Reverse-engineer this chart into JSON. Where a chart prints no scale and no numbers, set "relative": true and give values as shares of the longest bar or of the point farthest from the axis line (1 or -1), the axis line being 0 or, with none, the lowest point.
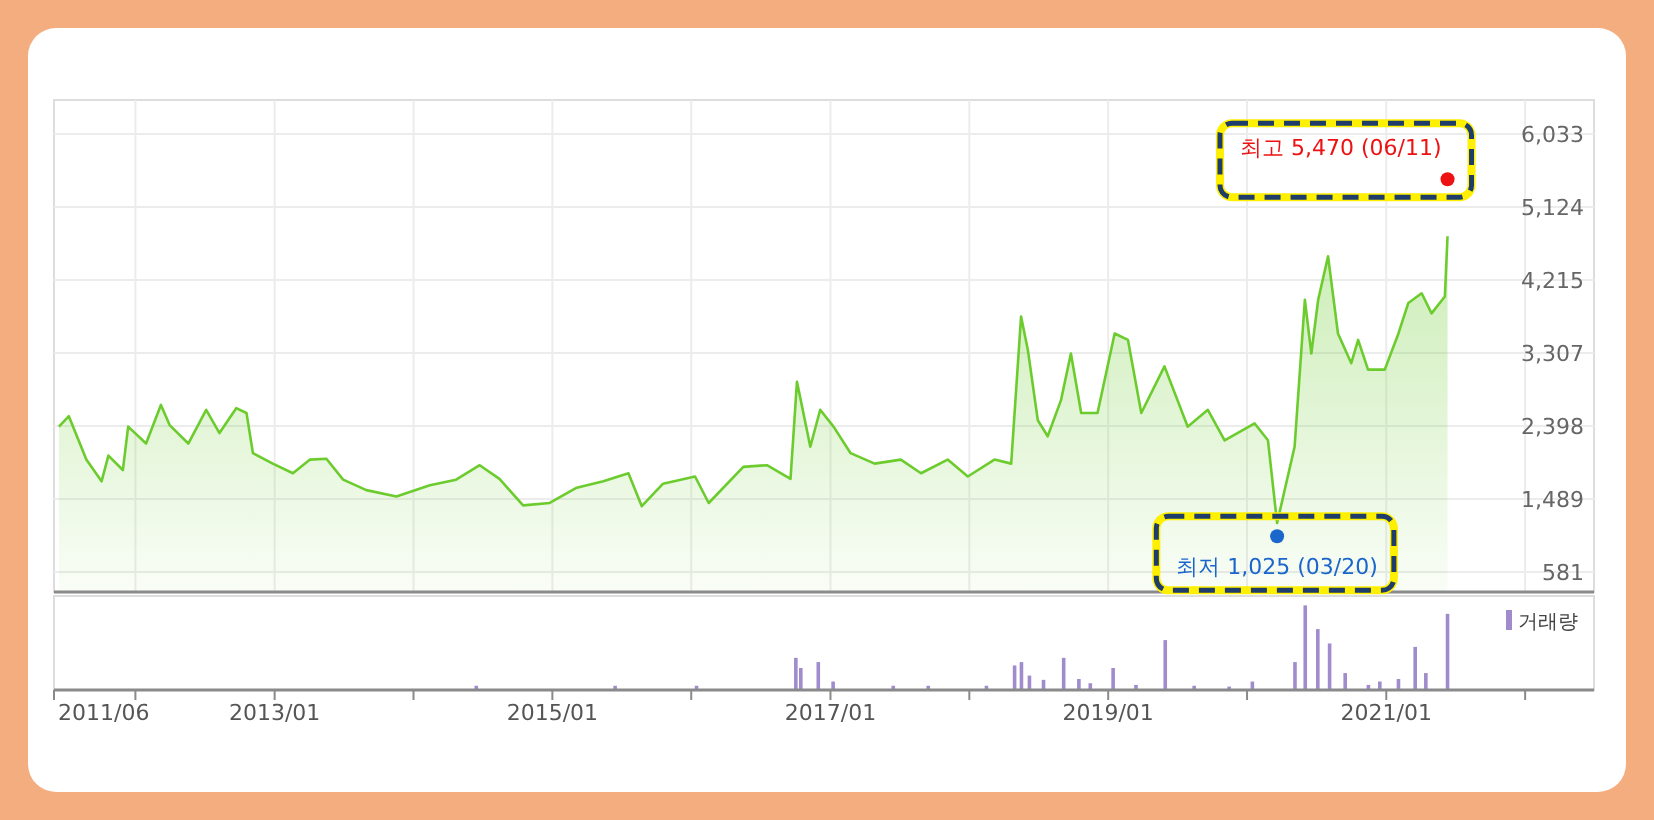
{
  "chart_data": [
    {
      "type": "area",
      "xlim": [
        "2011-06",
        "2022-07"
      ],
      "ylim": [
        332,
        6456
      ],
      "xticks": [
        {
          "value": "2012-01",
          "label": null
        },
        {
          "value": "2013-01",
          "label": null
        },
        {
          "value": "2014-01",
          "label": null
        },
        {
          "value": "2015-01",
          "label": null
        },
        {
          "value": "2016-01",
          "label": null
        },
        {
          "value": "2017-01",
          "label": null
        },
        {
          "value": "2018-01",
          "label": null
        },
        {
          "value": "2019-01",
          "label": null
        },
        {
          "value": "2020-01",
          "label": null
        },
        {
          "value": "2021-01",
          "label": null
        },
        {
          "value": "2022-01",
          "label": null
        }
      ],
      "yticks": [
        581,
        {
          "value": 1489,
          "label": "1,489"
        },
        {
          "value": 2398,
          "label": "2,398"
        },
        {
          "value": 3307,
          "label": "3,307"
        },
        {
          "value": 4215,
          "label": "4,215"
        },
        {
          "value": 5124,
          "label": "5,124"
        },
        {
          "value": 6033,
          "label": "6,033"
        }
      ],
      "grid": true,
      "tick_labels": "y",
      "series": [
        {
          "color": "#6ccc2e",
          "x": [
            "2011-06-14",
            "2011-07-10",
            "2011-08-25",
            "2011-10-04",
            "2011-10-22",
            "2011-11-29",
            "2011-12-13",
            "2012-01-29",
            "2012-03-08",
            "2012-03-31",
            "2012-05-19",
            "2012-07-05",
            "2012-08-09",
            "2012-09-22",
            "2012-10-19",
            "2012-11-05",
            "2012-12-27",
            "2013-02-18",
            "2013-04-04",
            "2013-05-17",
            "2013-06-30",
            "2013-08-30",
            "2013-11-17",
            "2014-02-13",
            "2014-04-23",
            "2014-06-24",
            "2014-08-15",
            "2014-10-16",
            "2014-12-25",
            "2015-03-06",
            "2015-05-15",
            "2015-07-20",
            "2015-08-24",
            "2015-10-19",
            "2016-01-11",
            "2016-02-16",
            "2016-05-17",
            "2016-07-18",
            "2016-09-18",
            "2016-10-05",
            "2016-11-09",
            "2016-12-05",
            "2017-01-09",
            "2017-02-23",
            "2017-04-27",
            "2017-07-05",
            "2017-08-27",
            "2017-11-05",
            "2017-12-28",
            "2018-03-08",
            "2018-04-21",
            "2018-05-17",
            "2018-06-04",
            "2018-06-30",
            "2018-07-26",
            "2018-08-30",
            "2018-09-25",
            "2018-10-22",
            "2018-12-04",
            "2019-01-18",
            "2019-02-22",
            "2019-03-29",
            "2019-05-29",
            "2019-07-29",
            "2019-09-20",
            "2019-11-03",
            "2020-01-21",
            "2020-02-25",
            "2020-03-20",
            "2020-05-05",
            "2020-06-01",
            "2020-06-18",
            "2020-07-06",
            "2020-08-01",
            "2020-08-27",
            "2020-10-01",
            "2020-10-19",
            "2020-11-14",
            "2020-12-28",
            "2021-02-02",
            "2021-02-28",
            "2021-04-04",
            "2021-04-30",
            "2021-06-04",
            "2021-06-11"
          ],
          "values": [
            2390,
            2520,
            1980,
            1710,
            2030,
            1850,
            2390,
            2180,
            2660,
            2410,
            2180,
            2600,
            2310,
            2620,
            2560,
            2060,
            1930,
            1810,
            1980,
            1990,
            1730,
            1600,
            1520,
            1660,
            1730,
            1910,
            1740,
            1410,
            1440,
            1630,
            1710,
            1810,
            1400,
            1680,
            1770,
            1440,
            1890,
            1910,
            1740,
            2950,
            2140,
            2600,
            2390,
            2060,
            1930,
            1980,
            1810,
            1980,
            1770,
            1980,
            1930,
            3760,
            3340,
            2470,
            2270,
            2720,
            3300,
            2560,
            2560,
            3550,
            3470,
            2560,
            3140,
            2390,
            2600,
            2220,
            2430,
            2220,
            1190,
            2140,
            3970,
            3300,
            3970,
            4510,
            3550,
            3180,
            3470,
            3100,
            3100,
            3550,
            3930,
            4050,
            3800,
            4010,
            4760
          ]
        }
      ],
      "annotations": [
        {
          "text": "최고 5,470 (06/11)",
          "x": "2021-06-11",
          "y": 5470
        },
        {
          "text": "최저 1,025 (03/20)",
          "x": "2020-03-20",
          "y": 1025
        }
      ]
    },
    {
      "type": "bar",
      "relative": true,
      "xlim": [
        "2011-06",
        "2022-07"
      ],
      "xticks": [
        {
          "value": "2011-06",
          "label": "2011/06"
        },
        {
          "value": "2012-01",
          "label": null
        },
        {
          "value": "2013-01",
          "label": "2013/01"
        },
        {
          "value": "2014-01",
          "label": null
        },
        {
          "value": "2015-01",
          "label": "2015/01"
        },
        {
          "value": "2016-01",
          "label": null
        },
        {
          "value": "2017-01",
          "label": "2017/01"
        },
        {
          "value": "2018-01",
          "label": null
        },
        {
          "value": "2019-01",
          "label": "2019/01"
        },
        {
          "value": "2020-01",
          "label": null
        },
        {
          "value": "2021-01",
          "label": "2021/01"
        },
        {
          "value": "2022-01",
          "label": null
        }
      ],
      "tick_labels": "x",
      "legend": "top right",
      "series": [
        {
          "name": "거래량",
          "color": "#a08ccc",
          "x": [
            "2014-06-15",
            "2015-06-15",
            "2016-01-15",
            "2016-10-02",
            "2016-10-15",
            "2016-11-30",
            "2017-01-08",
            "2017-06-15",
            "2017-09-15",
            "2018-02-15",
            "2018-04-30",
            "2018-05-18",
            "2018-06-08",
            "2018-07-15",
            "2018-09-06",
            "2018-10-16",
            "2018-11-15",
            "2019-01-14",
            "2019-03-15",
            "2019-05-31",
            "2019-08-15",
            "2019-11-15",
            "2020-01-15",
            "2020-05-06",
            "2020-06-02",
            "2020-07-05",
            "2020-08-05",
            "2020-09-15",
            "2020-11-15",
            "2020-12-15",
            "2021-02-02",
            "2021-03-18",
            "2021-04-15",
            "2021-06-11"
          ],
          "values": [
            0.05,
            0.05,
            0.05,
            0.38,
            0.26,
            0.33,
            0.1,
            0.05,
            0.05,
            0.05,
            0.29,
            0.33,
            0.17,
            0.12,
            0.38,
            0.13,
            0.08,
            0.26,
            0.06,
            0.59,
            0.05,
            0.04,
            0.1,
            0.33,
            1,
            0.72,
            0.55,
            0.2,
            0.06,
            0.1,
            0.13,
            0.51,
            0.2,
            0.9
          ]
        }
      ]
    }
  ]
}
